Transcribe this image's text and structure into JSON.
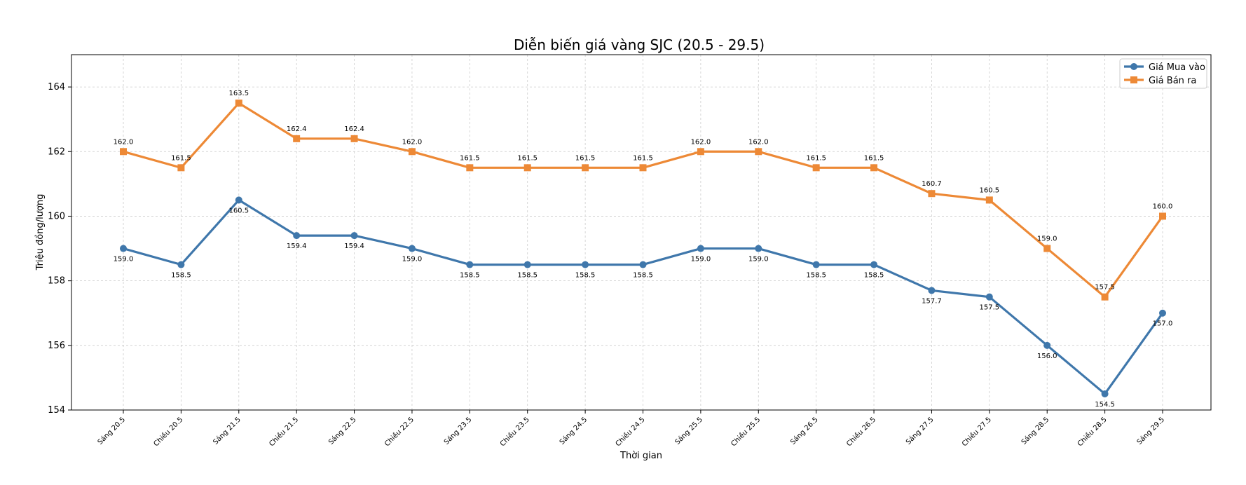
{
  "chart_data": {
    "type": "line",
    "title": "Diễn biến giá vàng SJC (20.5 - 29.5)",
    "xlabel": "Thời gian",
    "ylabel": "Triệu đồng/lượng",
    "ylim": [
      154,
      165
    ],
    "yticks": [
      154,
      156,
      158,
      160,
      162,
      164
    ],
    "grid": true,
    "legend_position": "top-right",
    "categories": [
      "Sáng 20.5",
      "Chiều 20.5",
      "Sáng 21.5",
      "Chiều 21.5",
      "Sáng 22.5",
      "Chiều 22.5",
      "Sáng 23.5",
      "Chiều 23.5",
      "Sáng 24.5",
      "Chiều 24.5",
      "Sáng 25.5",
      "Chiều 25.5",
      "Sáng 26.5",
      "Chiều 26.5",
      "Sáng 27.5",
      "Chiều 27.5",
      "Sáng 28.5",
      "Chiều 28.5",
      "Sáng 29.5"
    ],
    "series": [
      {
        "name": "Giá Mua vào",
        "color": "#3f77ab",
        "marker": "circle",
        "label_position": "below",
        "values": [
          159.0,
          158.5,
          160.5,
          159.4,
          159.4,
          159.0,
          158.5,
          158.5,
          158.5,
          158.5,
          159.0,
          159.0,
          158.5,
          158.5,
          157.7,
          157.5,
          156.0,
          154.5,
          157.0
        ]
      },
      {
        "name": "Giá Bán ra",
        "color": "#ed8936",
        "marker": "square",
        "label_position": "above",
        "values": [
          162.0,
          161.5,
          163.5,
          162.4,
          162.4,
          162.0,
          161.5,
          161.5,
          161.5,
          161.5,
          162.0,
          162.0,
          161.5,
          161.5,
          160.7,
          160.5,
          159.0,
          157.5,
          160.0
        ]
      }
    ]
  }
}
